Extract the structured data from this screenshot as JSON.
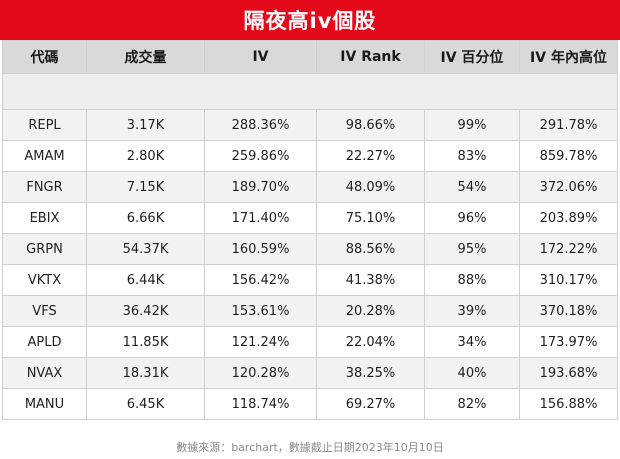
{
  "title": "隔夜高iv個股",
  "headers": [
    "代碼",
    "成交量",
    "IV",
    "IV Rank",
    "IV 百分位",
    "IV 年內高位"
  ],
  "rows": [
    {
      "code": "REPL",
      "volume": "3.17K",
      "iv": "288.36%",
      "iv_rank": "98.66%",
      "iv_percentile": "99%",
      "iv_year_high": "291.78%"
    },
    {
      "code": "AMAM",
      "volume": "2.80K",
      "iv": "259.86%",
      "iv_rank": "22.27%",
      "iv_percentile": "83%",
      "iv_year_high": "859.78%"
    },
    {
      "code": "FNGR",
      "volume": "7.15K",
      "iv": "189.70%",
      "iv_rank": "48.09%",
      "iv_percentile": "54%",
      "iv_year_high": "372.06%"
    },
    {
      "code": "EBIX",
      "volume": "6.66K",
      "iv": "171.40%",
      "iv_rank": "75.10%",
      "iv_percentile": "96%",
      "iv_year_high": "203.89%"
    },
    {
      "code": "GRPN",
      "volume": "54.37K",
      "iv": "160.59%",
      "iv_rank": "88.56%",
      "iv_percentile": "95%",
      "iv_year_high": "172.22%"
    },
    {
      "code": "VKTX",
      "volume": "6.44K",
      "iv": "156.42%",
      "iv_rank": "41.38%",
      "iv_percentile": "88%",
      "iv_year_high": "310.17%"
    },
    {
      "code": "VFS",
      "volume": "36.42K",
      "iv": "153.61%",
      "iv_rank": "20.28%",
      "iv_percentile": "39%",
      "iv_year_high": "370.18%"
    },
    {
      "code": "APLD",
      "volume": "11.85K",
      "iv": "121.24%",
      "iv_rank": "22.04%",
      "iv_percentile": "34%",
      "iv_year_high": "173.97%"
    },
    {
      "code": "NVAX",
      "volume": "18.31K",
      "iv": "120.28%",
      "iv_rank": "38.25%",
      "iv_percentile": "40%",
      "iv_year_high": "193.68%"
    },
    {
      "code": "MANU",
      "volume": "6.45K",
      "iv": "118.74%",
      "iv_rank": "69.27%",
      "iv_percentile": "82%",
      "iv_year_high": "156.88%"
    }
  ],
  "footer": "數據來源：barchart，數據截止日期2023年10月10日",
  "colors": {
    "title_bg": "#e3091b",
    "header_bg": "#d9d9d9",
    "row_alt_bg": "#f2f2f2"
  }
}
